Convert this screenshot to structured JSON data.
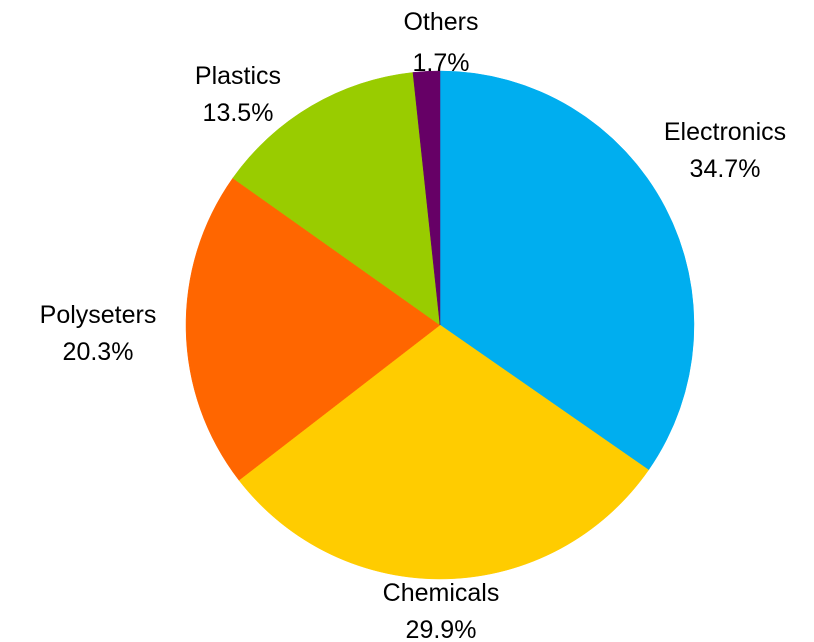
{
  "chart_data": {
    "type": "pie",
    "title": "",
    "legend": "none",
    "slices": [
      {
        "label": "Electronics",
        "value": 34.7,
        "display": "34.7%",
        "color": "#00AEEF"
      },
      {
        "label": "Chemicals",
        "value": 29.9,
        "display": "29.9%",
        "color": "#FFCC00"
      },
      {
        "label": "Polyseters",
        "value": 20.3,
        "display": "20.3%",
        "color": "#FF6600"
      },
      {
        "label": "Plastics",
        "value": 13.5,
        "display": "13.5%",
        "color": "#99CC00"
      },
      {
        "label": "Others",
        "value": 1.7,
        "display": "1.7%",
        "color": "#660066"
      }
    ]
  }
}
